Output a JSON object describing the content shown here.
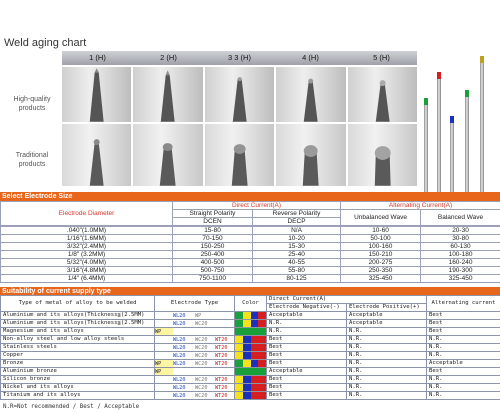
{
  "aging_chart": {
    "title": "Weld aging chart",
    "columns": [
      "1 (H)",
      "2 (H)",
      "3   3 (H)",
      "4 (H)",
      "5 (H)"
    ],
    "rows": [
      "High-quality products",
      "Traditional products"
    ]
  },
  "electrode_size": {
    "title": "Select Electrode Size",
    "headers": {
      "diameter": "Electrode Diameter",
      "direct": "Direct Current(A)",
      "alternating": "Alternating Current(A)",
      "straight": "Straight Polarity",
      "reverse": "Reverse Polarity",
      "dcen": "DCEN",
      "decp": "DECP",
      "unbalanced": "Unbalanced Wave",
      "balanced": "Balanced Wave"
    },
    "rows": [
      [
        ".040\"(1.0MM)",
        "15-80",
        "N/A",
        "10-60",
        "20-30"
      ],
      [
        "1/16\"(1.6MM)",
        "70-150",
        "10-20",
        "50-100",
        "30-80"
      ],
      [
        "3/32\"(2.4MM)",
        "150-250",
        "15-30",
        "100-160",
        "60-130"
      ],
      [
        "1/8\" (3.2MM)",
        "250-400",
        "25-40",
        "150-210",
        "100-180"
      ],
      [
        "5/32\"(4.0MM)",
        "400-500",
        "40-55",
        "200-275",
        "160-240"
      ],
      [
        "3/16\"(4.8MM)",
        "500-750",
        "55-80",
        "250-350",
        "190-300"
      ],
      [
        "1/4\" (6.4MM)",
        "750-1100",
        "80-125",
        "325-450",
        "325-450"
      ]
    ]
  },
  "current_supply": {
    "title": "Suitability of current supply type",
    "headers": {
      "metal": "Type of metal of alloy to be welded",
      "etype": "Electrode Type",
      "color": "Color",
      "direct": "Direct Current(A)",
      "neg": "Electrode Negative(-)",
      "pos": "Electrode Positive(+)",
      "alt": "Alternating current"
    },
    "rows": [
      {
        "metal": "Aluminium and its alloys(Thickness≦(2.5MM)",
        "wp": "",
        "wl": "WL20",
        "wc": "WP",
        "wt": "",
        "neg": "Acceptable",
        "pos": "Acceptable",
        "alt": "Best",
        "colors": [
          "#1aa03a",
          "#f5e21a",
          "#1b2fc0",
          "#d62020"
        ]
      },
      {
        "metal": "Aluminium and its alloys(Thickness≦(2.5MM)",
        "wp": "",
        "wl": "WL20",
        "wc": "WC20",
        "wt": "",
        "neg": "N.R.",
        "pos": "Acceptable",
        "alt": "Best",
        "colors": [
          "#1aa03a",
          "#f5e21a",
          "#1b2fc0",
          "#d62020"
        ]
      },
      {
        "metal": "Magnesium and its alloys",
        "wp": "WP",
        "wl": "",
        "wc": "",
        "wt": "",
        "neg": "N.R.",
        "pos": "N.R.",
        "alt": "Best",
        "colors": [
          "#1aa03a",
          "#1aa03a",
          "#1aa03a",
          "#1aa03a"
        ]
      },
      {
        "metal": "Non-alloy steel and low alloy steels",
        "wp": "",
        "wl": "WL20",
        "wc": "WC20",
        "wt": "WT20",
        "neg": "Best",
        "pos": "N.R.",
        "alt": "N.R.",
        "colors": [
          "#f5e21a",
          "#1b2fc0",
          "#d62020",
          "#d62020"
        ]
      },
      {
        "metal": "Stainless steels",
        "wp": "",
        "wl": "WL20",
        "wc": "WC20",
        "wt": "WT20",
        "neg": "Best",
        "pos": "N.R.",
        "alt": "N.R.",
        "colors": [
          "#f5e21a",
          "#1b2fc0",
          "#d62020",
          "#d62020"
        ]
      },
      {
        "metal": "Copper",
        "wp": "",
        "wl": "WL20",
        "wc": "WC20",
        "wt": "WT20",
        "neg": "Best",
        "pos": "N.R.",
        "alt": "N.R.",
        "colors": [
          "#f5e21a",
          "#1b2fc0",
          "#d62020",
          "#d62020"
        ]
      },
      {
        "metal": "Bronze",
        "wp": "WP",
        "wl": "WL20",
        "wc": "WC20",
        "wt": "WT20",
        "neg": "Best",
        "pos": "N.R.",
        "alt": "Acceptable",
        "colors": [
          "#1aa03a",
          "#f5e21a",
          "#1b2fc0",
          "#d62020"
        ]
      },
      {
        "metal": "Aluminium bronze",
        "wp": "WP",
        "wl": "",
        "wc": "",
        "wt": "",
        "neg": "Acceptable",
        "pos": "N.R.",
        "alt": "Best",
        "colors": [
          "#1aa03a",
          "#1aa03a",
          "#1aa03a",
          "#1aa03a"
        ]
      },
      {
        "metal": "Silicon bronze",
        "wp": "",
        "wl": "WL20",
        "wc": "WC20",
        "wt": "WT20",
        "neg": "Best",
        "pos": "N.R.",
        "alt": "N.R.",
        "colors": [
          "#f5e21a",
          "#1b2fc0",
          "#d62020",
          "#d62020"
        ]
      },
      {
        "metal": "Nickel and its alloys",
        "wp": "",
        "wl": "WL20",
        "wc": "WC20",
        "wt": "WT20",
        "neg": "Best",
        "pos": "N.R.",
        "alt": "N.R.",
        "colors": [
          "#f5e21a",
          "#1b2fc0",
          "#d62020",
          "#d62020"
        ]
      },
      {
        "metal": "Titanium and its alloys",
        "wp": "",
        "wl": "WL20",
        "wc": "WC20",
        "wt": "WT20",
        "neg": "Best",
        "pos": "N.R.",
        "alt": "N.R.",
        "colors": [
          "#f5e21a",
          "#1b2fc0",
          "#d62020",
          "#d62020"
        ]
      }
    ],
    "footnote": "N.R=Not recommended / Best / Acceptable"
  },
  "rod_tips": [
    "#1aa03a",
    "#d62020",
    "#1b2fc0",
    "#1aa03a",
    "#c0a020"
  ]
}
